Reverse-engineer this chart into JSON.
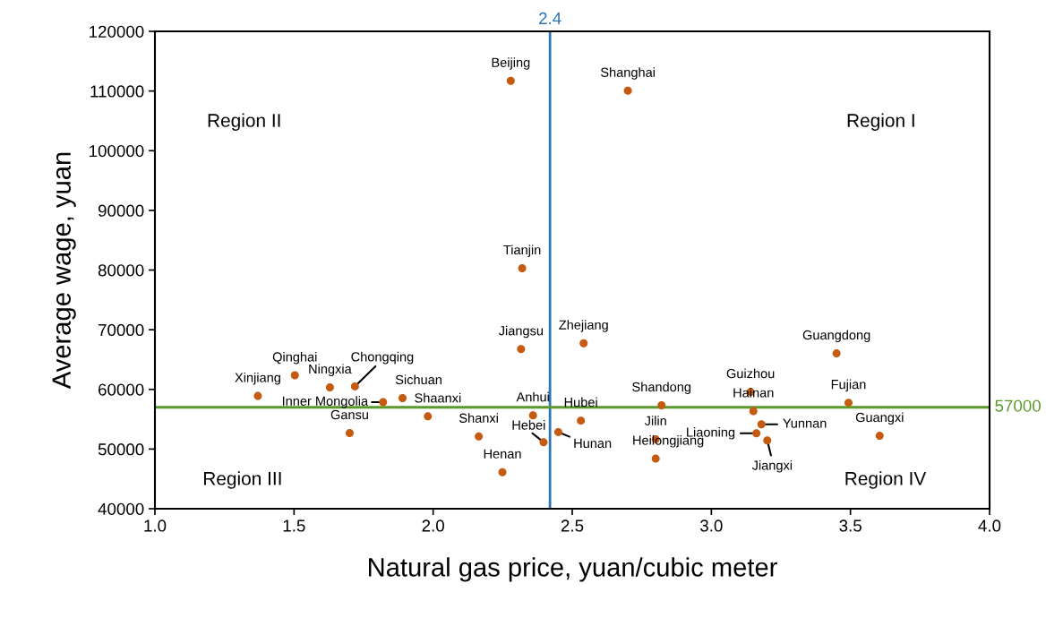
{
  "chart_data": {
    "type": "scatter",
    "xlabel": "Natural gas price, yuan/cubic meter",
    "ylabel": "Average wage, yuan",
    "x": [
      2.279,
      2.32,
      2.316,
      2.541,
      1.503,
      1.37,
      1.629,
      1.719,
      1.82,
      1.89,
      1.981,
      1.7,
      2.164,
      2.359,
      2.397,
      2.249,
      2.7,
      2.45,
      2.531,
      2.821,
      2.8,
      2.8,
      3.141,
      3.151,
      3.18,
      3.162,
      3.201,
      3.45,
      3.493,
      3.605
    ],
    "series": [
      {
        "color": "#c55a11",
        "values": [
          111700,
          80300,
          66750,
          67730,
          62360,
          58900,
          60340,
          60500,
          57860,
          58540,
          55480,
          52680,
          52110,
          55640,
          51140,
          46120,
          110050,
          52850,
          54760,
          57330,
          51650,
          48390,
          59570,
          56360,
          54140,
          52640,
          51440,
          66030,
          57760,
          52220
        ]
      }
    ],
    "annotations": [
      {
        "text": "Beijing",
        "x": 2.279,
        "y": 111700
      },
      {
        "text": "Tianjin",
        "x": 2.32,
        "y": 80300
      },
      {
        "text": "Jiangsu",
        "x": 2.316,
        "y": 66750
      },
      {
        "text": "Zhejiang",
        "x": 2.541,
        "y": 67730
      },
      {
        "text": "Qinghai",
        "x": 1.503,
        "y": 62360
      },
      {
        "text": "Xinjiang",
        "x": 1.37,
        "y": 58900
      },
      {
        "text": "Ningxia",
        "x": 1.629,
        "y": 60340
      },
      {
        "text": "Chongqing",
        "x": 1.719,
        "y": 60500
      },
      {
        "text": "Inner Mongolia",
        "x": 1.82,
        "y": 57860
      },
      {
        "text": "Sichuan",
        "x": 1.89,
        "y": 58540
      },
      {
        "text": "Shaanxi",
        "x": 1.981,
        "y": 55480
      },
      {
        "text": "Gansu",
        "x": 1.7,
        "y": 52680
      },
      {
        "text": "Shanxi",
        "x": 2.164,
        "y": 52110
      },
      {
        "text": "Anhui",
        "x": 2.359,
        "y": 55640
      },
      {
        "text": "Hebei",
        "x": 2.397,
        "y": 51140
      },
      {
        "text": "Henan",
        "x": 2.249,
        "y": 46120
      },
      {
        "text": "Shanghai",
        "x": 2.7,
        "y": 110050
      },
      {
        "text": "Hunan",
        "x": 2.45,
        "y": 52850
      },
      {
        "text": "Hubei",
        "x": 2.531,
        "y": 54760
      },
      {
        "text": "Shandong",
        "x": 2.821,
        "y": 57330
      },
      {
        "text": "Jilin",
        "x": 2.8,
        "y": 51650
      },
      {
        "text": "Heilongjiang",
        "x": 2.8,
        "y": 48390
      },
      {
        "text": "Guizhou",
        "x": 3.141,
        "y": 59570
      },
      {
        "text": "Hainan",
        "x": 3.151,
        "y": 56360
      },
      {
        "text": "Yunnan",
        "x": 3.18,
        "y": 54140
      },
      {
        "text": "Liaoning",
        "x": 3.162,
        "y": 52640
      },
      {
        "text": "Jiangxi",
        "x": 3.201,
        "y": 51440
      },
      {
        "text": "Guangdong",
        "x": 3.45,
        "y": 66030
      },
      {
        "text": "Fujian",
        "x": 3.493,
        "y": 57760
      },
      {
        "text": "Guangxi",
        "x": 3.605,
        "y": 52220
      },
      "Region I",
      "Region II",
      "Region III",
      "Region IV"
    ],
    "ref_lines": [
      {
        "axis": "x",
        "value": 2.42,
        "label": "2.4",
        "color": "#2e75b6"
      },
      {
        "axis": "y",
        "value": 57000,
        "label": "57000",
        "color": "#5a9a2b"
      }
    ],
    "xlim": [
      1.0,
      4.0
    ],
    "xticks": [
      {
        "value": 1.0,
        "label": "1.0"
      },
      {
        "value": 1.5,
        "label": "1.5"
      },
      {
        "value": 2.0,
        "label": "2.0"
      },
      {
        "value": 2.5,
        "label": "2.5"
      },
      {
        "value": 3.0,
        "label": "3.0"
      },
      {
        "value": 3.5,
        "label": "3.5"
      },
      {
        "value": 4.0,
        "label": "4.0"
      }
    ],
    "ylim": [
      40000,
      120000
    ],
    "yticks": [
      40000,
      50000,
      60000,
      70000,
      80000,
      90000,
      100000,
      110000,
      120000
    ],
    "grid": false,
    "legend": false,
    "marker": "circle"
  }
}
